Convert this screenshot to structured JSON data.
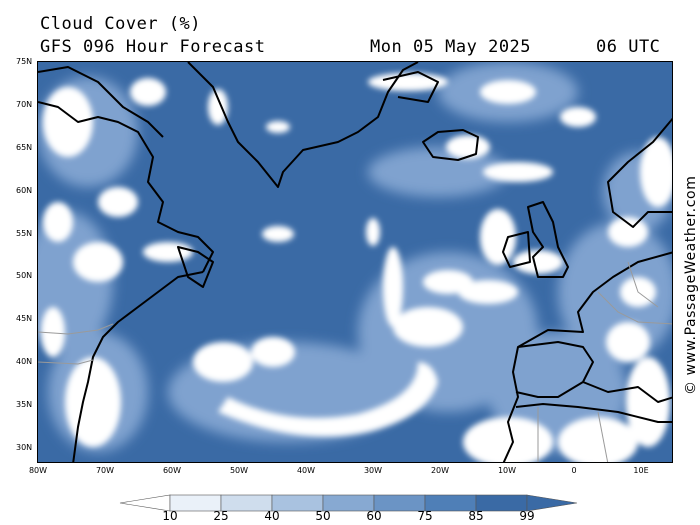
{
  "header": {
    "title": "Cloud Cover (%)",
    "subtitle": "GFS 096 Hour Forecast",
    "date": "Mon 05 May 2025",
    "time": "06 UTC"
  },
  "credit": "© www.PassageWeather.com",
  "axes": {
    "lat_labels": [
      "75N",
      "70N",
      "65N",
      "60N",
      "55N",
      "50N",
      "45N",
      "40N",
      "35N",
      "30N"
    ],
    "lon_labels": [
      "80W",
      "70W",
      "60W",
      "50W",
      "40W",
      "30W",
      "20W",
      "10W",
      "0",
      "10E"
    ]
  },
  "legend": {
    "labels": [
      "10",
      "25",
      "40",
      "50",
      "60",
      "75",
      "85",
      "99"
    ],
    "colors": [
      "#ffffff",
      "#eaf1f9",
      "#cfdded",
      "#a9c2e0",
      "#87a9d2",
      "#6b94c5",
      "#4f7fb7",
      "#3a6aa5"
    ]
  },
  "colors": {
    "ocean_overcast": "#3a6aa5",
    "clear": "#ffffff",
    "coast": "#000000",
    "border": "#999999"
  }
}
